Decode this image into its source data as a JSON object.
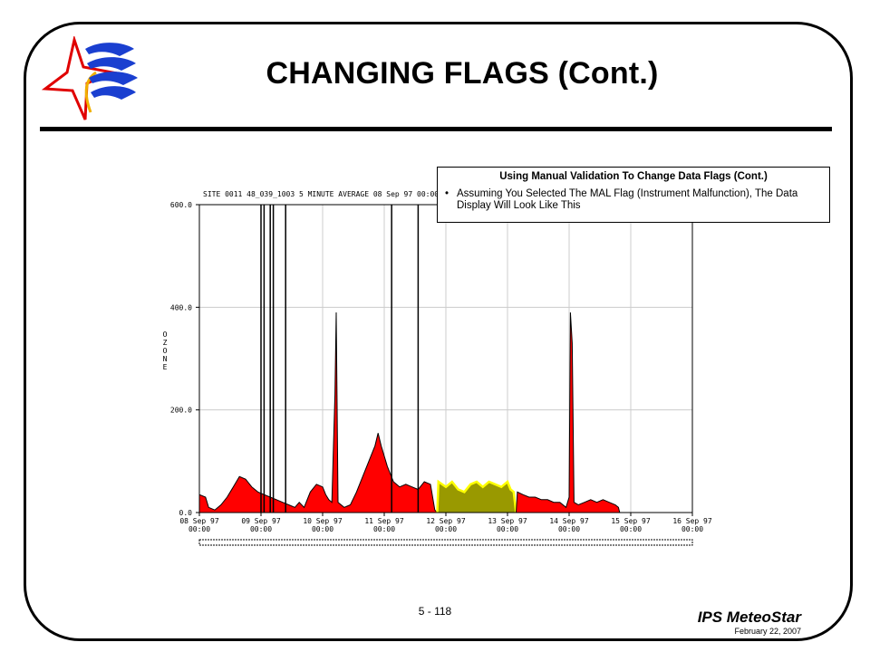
{
  "slide": {
    "title": "CHANGING FLAGS (Cont.)",
    "page_number": "5 - 118",
    "brand": "IPS MeteoStar",
    "date": "February 22, 2007"
  },
  "callout": {
    "title": "Using Manual Validation To Change Data Flags (Cont.)",
    "bullet_marker": "•",
    "bullet_text": "Assuming You Selected The  MAL Flag (Instrument Malfunction), The Data Display Will Look Like This"
  },
  "chart_data": {
    "type": "area",
    "title": "SITE 0011 48_039_1003 5 MINUTE AVERAGE 08 Sep 97 00:00",
    "ylabel": "OZONE",
    "ylim": [
      0,
      600
    ],
    "yticks": [
      "600.0",
      "400.0",
      "200.0",
      "0.0"
    ],
    "ytick_values": [
      600,
      400,
      200,
      0
    ],
    "xlim": [
      0,
      8
    ],
    "xticks": [
      {
        "day": "08 Sep 97",
        "time": "00:00"
      },
      {
        "day": "09 Sep 97",
        "time": "00:00"
      },
      {
        "day": "10 Sep 97",
        "time": "00:00"
      },
      {
        "day": "11 Sep 97",
        "time": "00:00"
      },
      {
        "day": "12 Sep 97",
        "time": "00:00"
      },
      {
        "day": "13 Sep 97",
        "time": "00:00"
      },
      {
        "day": "14 Sep 97",
        "time": "00:00"
      },
      {
        "day": "15 Sep 97",
        "time": "00:00"
      },
      {
        "day": "16 Sep 97",
        "time": "00:00"
      }
    ],
    "grid": true,
    "colors": {
      "valid": "#ff0000",
      "flagged_mal": "#999900",
      "flagged_edge": "#ffff00",
      "line": "#000000"
    },
    "series": [
      {
        "flag": "valid",
        "color": "#ff0000",
        "points": [
          [
            0.0,
            35
          ],
          [
            0.1,
            30
          ],
          [
            0.15,
            10
          ],
          [
            0.25,
            5
          ],
          [
            0.35,
            15
          ],
          [
            0.45,
            30
          ],
          [
            0.55,
            50
          ],
          [
            0.65,
            70
          ],
          [
            0.75,
            65
          ],
          [
            0.85,
            50
          ],
          [
            0.95,
            40
          ],
          [
            1.05,
            35
          ],
          [
            1.15,
            30
          ],
          [
            1.25,
            25
          ],
          [
            1.35,
            20
          ],
          [
            1.45,
            15
          ],
          [
            1.55,
            10
          ],
          [
            1.62,
            20
          ],
          [
            1.7,
            10
          ],
          [
            1.8,
            40
          ],
          [
            1.9,
            55
          ],
          [
            2.0,
            50
          ],
          [
            2.05,
            35
          ],
          [
            2.1,
            25
          ],
          [
            2.15,
            20
          ],
          [
            2.2,
            230
          ],
          [
            2.22,
            390
          ],
          [
            2.25,
            20
          ],
          [
            2.35,
            10
          ],
          [
            2.45,
            15
          ],
          [
            2.55,
            40
          ],
          [
            2.65,
            70
          ],
          [
            2.75,
            100
          ],
          [
            2.85,
            130
          ],
          [
            2.9,
            155
          ],
          [
            2.95,
            130
          ],
          [
            3.05,
            90
          ],
          [
            3.15,
            60
          ],
          [
            3.25,
            50
          ],
          [
            3.35,
            55
          ],
          [
            3.45,
            50
          ],
          [
            3.55,
            45
          ],
          [
            3.65,
            60
          ],
          [
            3.75,
            55
          ],
          [
            3.82,
            5
          ],
          [
            3.86,
            0
          ]
        ]
      },
      {
        "flag": "MAL",
        "color": "#999900",
        "points": [
          [
            3.86,
            0
          ],
          [
            3.88,
            60
          ],
          [
            4.0,
            50
          ],
          [
            4.1,
            60
          ],
          [
            4.2,
            45
          ],
          [
            4.3,
            40
          ],
          [
            4.4,
            55
          ],
          [
            4.5,
            60
          ],
          [
            4.6,
            50
          ],
          [
            4.7,
            60
          ],
          [
            4.8,
            55
          ],
          [
            4.9,
            50
          ],
          [
            5.0,
            60
          ],
          [
            5.05,
            45
          ],
          [
            5.1,
            40
          ],
          [
            5.14,
            0
          ]
        ]
      },
      {
        "flag": "valid",
        "color": "#ff0000",
        "points": [
          [
            5.14,
            0
          ],
          [
            5.16,
            40
          ],
          [
            5.25,
            35
          ],
          [
            5.35,
            30
          ],
          [
            5.45,
            30
          ],
          [
            5.55,
            25
          ],
          [
            5.65,
            25
          ],
          [
            5.75,
            20
          ],
          [
            5.85,
            20
          ],
          [
            5.95,
            10
          ],
          [
            6.0,
            30
          ],
          [
            6.02,
            390
          ],
          [
            6.05,
            330
          ],
          [
            6.08,
            20
          ],
          [
            6.15,
            15
          ],
          [
            6.25,
            20
          ],
          [
            6.35,
            25
          ],
          [
            6.45,
            20
          ],
          [
            6.55,
            25
          ],
          [
            6.65,
            20
          ],
          [
            6.75,
            15
          ],
          [
            6.8,
            10
          ],
          [
            6.82,
            0
          ]
        ]
      }
    ],
    "vertical_lines_x": [
      1.0,
      1.05,
      1.15,
      1.2,
      1.4,
      3.12,
      3.55
    ]
  }
}
